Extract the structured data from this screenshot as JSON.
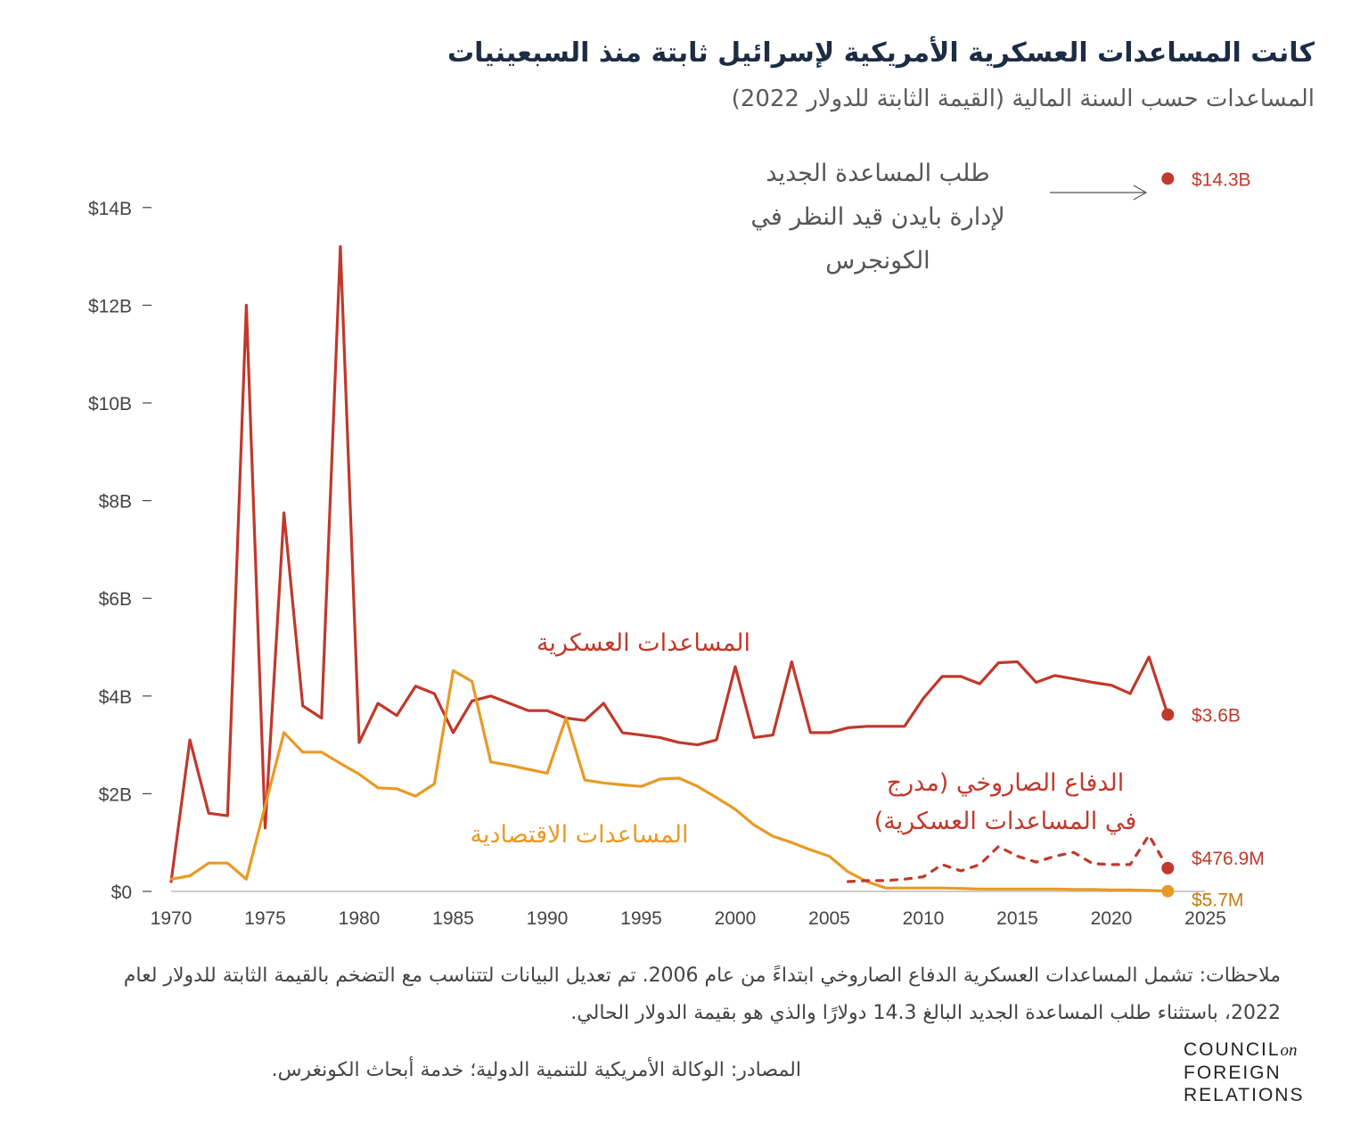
{
  "header": {
    "title": "كانت المساعدات العسكرية الأمريكية لإسرائيل ثابتة منذ السبعينيات",
    "subtitle": "المساعدات حسب السنة المالية (القيمة الثابتة للدولار 2022)"
  },
  "chart_data": {
    "type": "line",
    "x_ticks": [
      1970,
      1975,
      1980,
      1985,
      1990,
      1995,
      2000,
      2005,
      2010,
      2015,
      2020,
      2025
    ],
    "y_ticks": [
      {
        "value": 0,
        "label": "$0"
      },
      {
        "value": 2,
        "label": "$2B"
      },
      {
        "value": 4,
        "label": "$4B"
      },
      {
        "value": 6,
        "label": "$6B"
      },
      {
        "value": 8,
        "label": "$8B"
      },
      {
        "value": 10,
        "label": "$10B"
      },
      {
        "value": 12,
        "label": "$12B"
      },
      {
        "value": 14,
        "label": "$14B"
      }
    ],
    "xlim": [
      1970,
      2025
    ],
    "ylim": [
      0,
      14.6
    ],
    "y_unit": "billions of 2022 dollars",
    "series": [
      {
        "name": "المساعدات العسكرية",
        "color": "#c0392b",
        "style": "solid",
        "x": [
          1970,
          1971,
          1972,
          1973,
          1974,
          1975,
          1976,
          1977,
          1978,
          1979,
          1980,
          1981,
          1982,
          1983,
          1984,
          1985,
          1986,
          1987,
          1988,
          1989,
          1990,
          1991,
          1992,
          1993,
          1994,
          1995,
          1996,
          1997,
          1998,
          1999,
          2000,
          2001,
          2002,
          2003,
          2004,
          2005,
          2006,
          2007,
          2008,
          2009,
          2010,
          2011,
          2012,
          2013,
          2014,
          2015,
          2016,
          2017,
          2018,
          2019,
          2020,
          2021,
          2022,
          2023
        ],
        "values": [
          0.2,
          3.1,
          1.6,
          1.55,
          12,
          1.3,
          7.75,
          3.8,
          3.55,
          13.2,
          3.05,
          3.85,
          3.6,
          4.2,
          4.05,
          3.25,
          3.9,
          4.0,
          3.85,
          3.7,
          3.7,
          3.55,
          3.5,
          3.85,
          3.25,
          3.2,
          3.15,
          3.05,
          3.0,
          3.1,
          4.6,
          3.15,
          3.2,
          4.7,
          3.25,
          3.25,
          3.35,
          3.38,
          3.38,
          3.38,
          3.95,
          4.4,
          4.4,
          4.25,
          4.68,
          4.7,
          4.28,
          4.42,
          4.35,
          4.28,
          4.22,
          4.05,
          4.8,
          3.62
        ],
        "end_label": "$3.6B"
      },
      {
        "name": "المساعدات الاقتصادية",
        "color": "#e89a25",
        "style": "solid",
        "x": [
          1970,
          1971,
          1972,
          1973,
          1974,
          1975,
          1976,
          1977,
          1978,
          1979,
          1980,
          1981,
          1982,
          1983,
          1984,
          1985,
          1986,
          1987,
          1988,
          1989,
          1990,
          1991,
          1992,
          1993,
          1994,
          1995,
          1996,
          1997,
          1998,
          1999,
          2000,
          2001,
          2002,
          2003,
          2004,
          2005,
          2006,
          2007,
          2008,
          2009,
          2010,
          2011,
          2012,
          2013,
          2014,
          2015,
          2016,
          2017,
          2018,
          2019,
          2020,
          2021,
          2022,
          2023
        ],
        "values": [
          0.25,
          0.32,
          0.58,
          0.58,
          0.25,
          1.75,
          3.25,
          2.85,
          2.85,
          2.62,
          2.4,
          2.12,
          2.1,
          1.95,
          2.2,
          4.52,
          4.3,
          2.65,
          2.58,
          2.5,
          2.42,
          3.55,
          2.28,
          2.22,
          2.18,
          2.15,
          2.3,
          2.32,
          2.15,
          1.92,
          1.68,
          1.36,
          1.13,
          1.0,
          0.85,
          0.72,
          0.4,
          0.2,
          0.07,
          0.07,
          0.07,
          0.07,
          0.06,
          0.05,
          0.05,
          0.05,
          0.05,
          0.05,
          0.04,
          0.04,
          0.03,
          0.03,
          0.02,
          0.0057
        ],
        "end_label": "$5.7M"
      },
      {
        "name": "الدفاع الصاروخي (مدرج في المساعدات العسكرية)",
        "color": "#c0392b",
        "style": "dashed",
        "x": [
          2006,
          2007,
          2008,
          2009,
          2010,
          2011,
          2012,
          2013,
          2014,
          2015,
          2016,
          2017,
          2018,
          2019,
          2020,
          2021,
          2022,
          2023
        ],
        "values": [
          0.2,
          0.22,
          0.22,
          0.25,
          0.3,
          0.55,
          0.42,
          0.55,
          0.92,
          0.72,
          0.6,
          0.72,
          0.8,
          0.57,
          0.55,
          0.55,
          1.15,
          0.4769
        ],
        "end_label": "$476.9M"
      }
    ],
    "new_request": {
      "x": 2023,
      "value": 14.3,
      "label": "$14.3B",
      "annotation": "طلب المساعدة الجديد لإدارة بايدن قيد النظر في الكونجرس"
    }
  },
  "labels": {
    "military": "المساعدات العسكرية",
    "economic": "المساعدات الاقتصادية",
    "missile_line1": "الدفاع الصاروخي (مدرج",
    "missile_line2": "في المساعدات العسكرية)",
    "request_line1": "طلب المساعدة الجديد",
    "request_line2": "لإدارة بايدن قيد النظر في",
    "request_line3": "الكونجرس"
  },
  "footer": {
    "notes": "ملاحظات: تشمل المساعدات العسكرية الدفاع الصاروخي ابتداءً من عام 2006. تم تعديل البيانات لتتناسب مع التضخم بالقيمة الثابتة للدولار لعام 2022، باستثناء طلب المساعدة الجديد البالغ 14.3 دولارًا والذي هو بقيمة الدولار الحالي.",
    "sources": "المصادر: الوكالة الأمريكية للتنمية الدولية؛ خدمة أبحاث الكونغرس.",
    "logo_line1": "COUNCIL",
    "logo_on": "on",
    "logo_line2": "FOREIGN",
    "logo_line3": "RELATIONS"
  }
}
